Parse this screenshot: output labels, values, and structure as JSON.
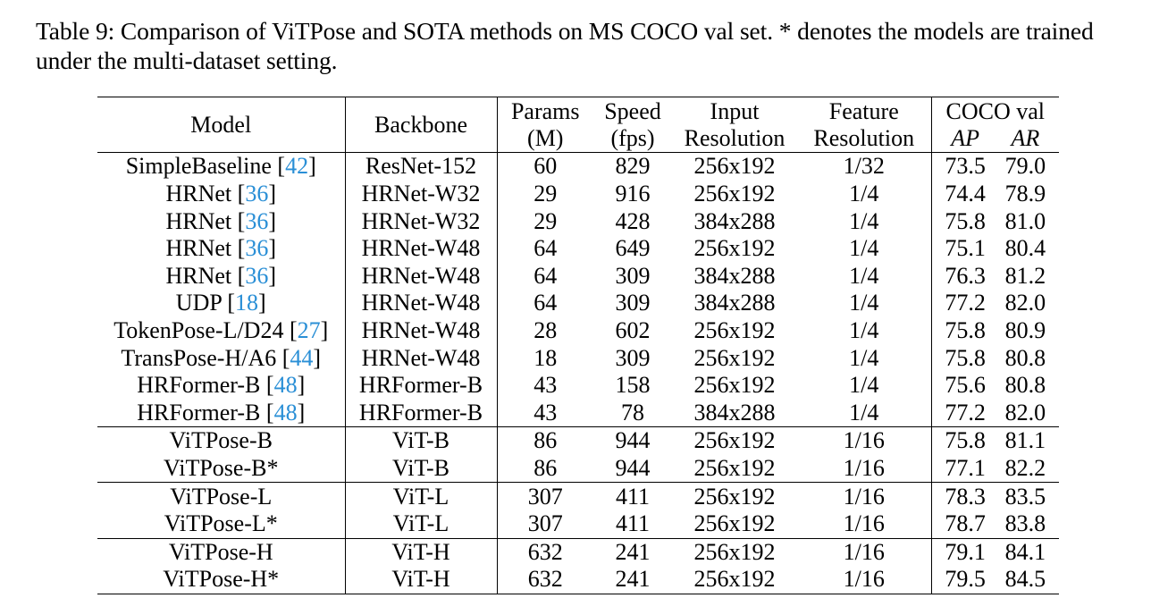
{
  "caption": "Table 9: Comparison of ViTPose and SOTA methods on MS COCO val set. * denotes the models are trained under the multi-dataset setting.",
  "header": {
    "model": "Model",
    "backbone": "Backbone",
    "params_1": "Params",
    "params_2": "(M)",
    "speed_1": "Speed",
    "speed_2": "(fps)",
    "input_1": "Input",
    "input_2": "Resolution",
    "feature_1": "Feature",
    "feature_2": "Resolution",
    "coco": "COCO val",
    "ap": "AP",
    "ar": "AR"
  },
  "rows": [
    {
      "model": "SimpleBaseline",
      "cite": "42",
      "backbone": "ResNet-152",
      "params": "60",
      "speed": "829",
      "input": "256x192",
      "feature": "1/32",
      "ap": "73.5",
      "ar": "79.0"
    },
    {
      "model": "HRNet",
      "cite": "36",
      "backbone": "HRNet-W32",
      "params": "29",
      "speed": "916",
      "input": "256x192",
      "feature": "1/4",
      "ap": "74.4",
      "ar": "78.9"
    },
    {
      "model": "HRNet",
      "cite": "36",
      "backbone": "HRNet-W32",
      "params": "29",
      "speed": "428",
      "input": "384x288",
      "feature": "1/4",
      "ap": "75.8",
      "ar": "81.0"
    },
    {
      "model": "HRNet",
      "cite": "36",
      "backbone": "HRNet-W48",
      "params": "64",
      "speed": "649",
      "input": "256x192",
      "feature": "1/4",
      "ap": "75.1",
      "ar": "80.4"
    },
    {
      "model": "HRNet",
      "cite": "36",
      "backbone": "HRNet-W48",
      "params": "64",
      "speed": "309",
      "input": "384x288",
      "feature": "1/4",
      "ap": "76.3",
      "ar": "81.2"
    },
    {
      "model": "UDP",
      "cite": "18",
      "backbone": "HRNet-W48",
      "params": "64",
      "speed": "309",
      "input": "384x288",
      "feature": "1/4",
      "ap": "77.2",
      "ar": "82.0"
    },
    {
      "model": "TokenPose-L/D24",
      "cite": "27",
      "backbone": "HRNet-W48",
      "params": "28",
      "speed": "602",
      "input": "256x192",
      "feature": "1/4",
      "ap": "75.8",
      "ar": "80.9"
    },
    {
      "model": "TransPose-H/A6",
      "cite": "44",
      "backbone": "HRNet-W48",
      "params": "18",
      "speed": "309",
      "input": "256x192",
      "feature": "1/4",
      "ap": "75.8",
      "ar": "80.8"
    },
    {
      "model": "HRFormer-B",
      "cite": "48",
      "backbone": "HRFormer-B",
      "params": "43",
      "speed": "158",
      "input": "256x192",
      "feature": "1/4",
      "ap": "75.6",
      "ar": "80.8"
    },
    {
      "model": "HRFormer-B",
      "cite": "48",
      "backbone": "HRFormer-B",
      "params": "43",
      "speed": "78",
      "input": "384x288",
      "feature": "1/4",
      "ap": "77.2",
      "ar": "82.0"
    },
    {
      "model": "ViTPose-B",
      "cite": "",
      "backbone": "ViT-B",
      "params": "86",
      "speed": "944",
      "input": "256x192",
      "feature": "1/16",
      "ap": "75.8",
      "ar": "81.1"
    },
    {
      "model": "ViTPose-B*",
      "cite": "",
      "backbone": "ViT-B",
      "params": "86",
      "speed": "944",
      "input": "256x192",
      "feature": "1/16",
      "ap": "77.1",
      "ar": "82.2"
    },
    {
      "model": "ViTPose-L",
      "cite": "",
      "backbone": "ViT-L",
      "params": "307",
      "speed": "411",
      "input": "256x192",
      "feature": "1/16",
      "ap": "78.3",
      "ar": "83.5"
    },
    {
      "model": "ViTPose-L*",
      "cite": "",
      "backbone": "ViT-L",
      "params": "307",
      "speed": "411",
      "input": "256x192",
      "feature": "1/16",
      "ap": "78.7",
      "ar": "83.8"
    },
    {
      "model": "ViTPose-H",
      "cite": "",
      "backbone": "ViT-H",
      "params": "632",
      "speed": "241",
      "input": "256x192",
      "feature": "1/16",
      "ap": "79.1",
      "ar": "84.1"
    },
    {
      "model": "ViTPose-H*",
      "cite": "",
      "backbone": "ViT-H",
      "params": "632",
      "speed": "241",
      "input": "256x192",
      "feature": "1/16",
      "ap": "79.5",
      "ar": "84.5"
    }
  ],
  "colors": {
    "citation": "#2a8fd6",
    "text": "#000000"
  }
}
